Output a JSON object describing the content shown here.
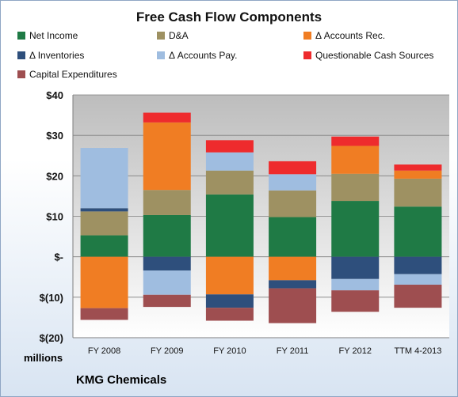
{
  "chart_data": {
    "type": "bar",
    "stacked": true,
    "title": "Free Cash Flow Components",
    "ylabel": "millions",
    "footer": "KMG Chemicals",
    "categories": [
      "FY 2008",
      "FY 2009",
      "FY 2010",
      "FY 2011",
      "FY 2012",
      "TTM 4-2013"
    ],
    "ylim": [
      -20,
      40
    ],
    "yticks": [
      40,
      30,
      20,
      10,
      0,
      -10,
      -20
    ],
    "ytick_labels": [
      "$40",
      "$30",
      "$20",
      "$10",
      "$-",
      "$(10)",
      "$(20)"
    ],
    "legend_position": "top",
    "series": [
      {
        "name": "Net Income",
        "color": "#1f7a45",
        "values": [
          5.3,
          10.3,
          15.4,
          9.8,
          13.8,
          12.4
        ]
      },
      {
        "name": "D&A",
        "color": "#9e9162",
        "values": [
          5.9,
          6.2,
          5.9,
          6.6,
          6.7,
          6.9
        ]
      },
      {
        "name": "Δ Accounts Rec.",
        "color": "#f07d23",
        "values": [
          -12.7,
          16.7,
          -9.3,
          -5.8,
          6.9,
          2.0
        ]
      },
      {
        "name": "Δ Inventories",
        "color": "#2e4f7c",
        "values": [
          0.8,
          -3.4,
          -3.3,
          -2.0,
          -5.5,
          -4.3
        ]
      },
      {
        "name": "Δ Accounts Pay.",
        "color": "#9fbde0",
        "values": [
          14.9,
          -6.0,
          4.5,
          4.0,
          -2.8,
          -2.6
        ]
      },
      {
        "name": "Questionable Cash Sources",
        "color": "#ee2b2d",
        "values": [
          0.0,
          2.4,
          3.0,
          3.2,
          2.3,
          1.5
        ]
      },
      {
        "name": "Capital Expenditures",
        "color": "#9e4e50",
        "values": [
          -2.9,
          -3.0,
          -3.2,
          -8.6,
          -5.3,
          -5.7
        ]
      }
    ]
  }
}
